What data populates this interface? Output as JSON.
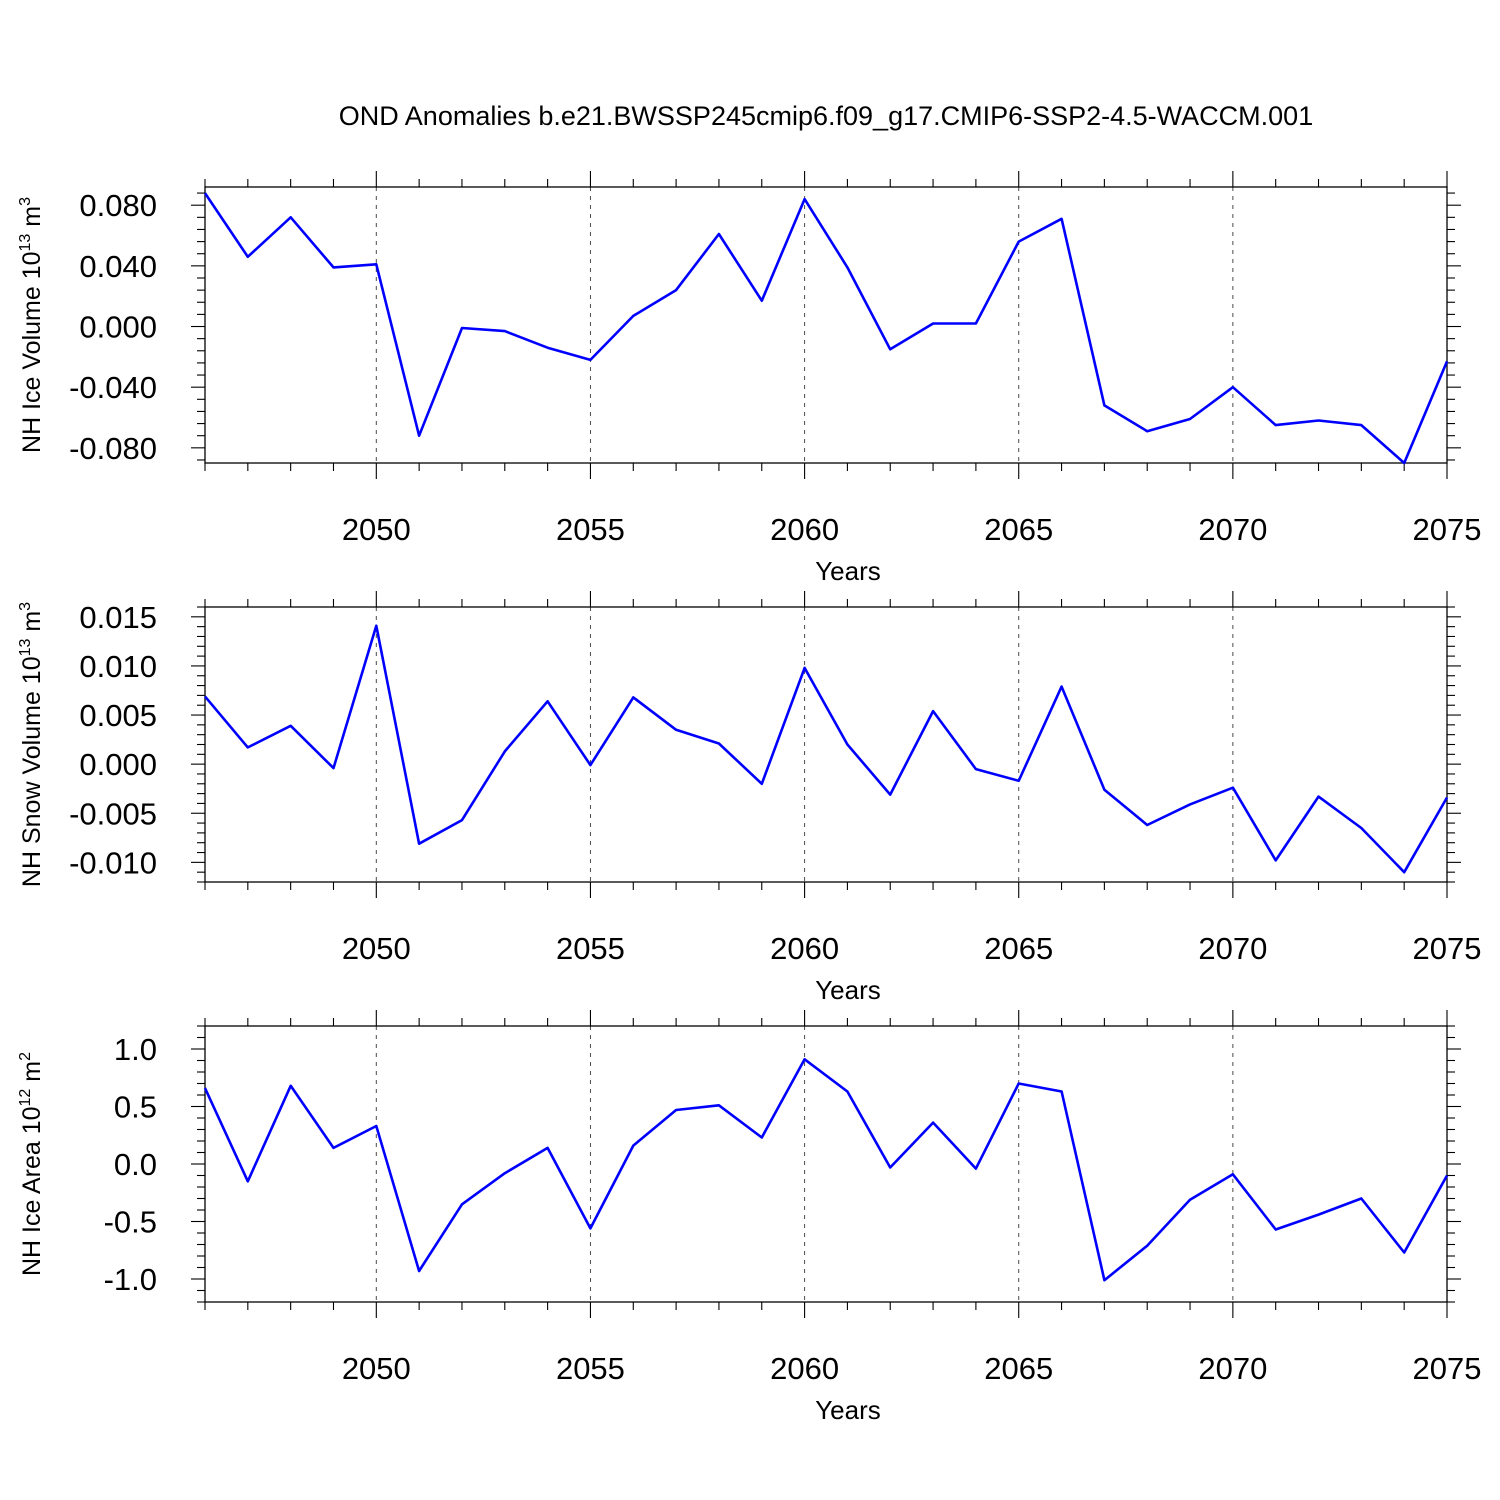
{
  "chart_data": [
    {
      "type": "line",
      "title": "OND Anomalies b.e21.BWSSP245cmip6.f09_g17.CMIP6-SSP2-4.5-WACCM.001",
      "xlabel": "Years",
      "ylabel": "NH Ice Volume 10",
      "ylabel_exponent": "13",
      "ylabel_unit": "m",
      "ylabel_unit_exponent": "3",
      "xlim": [
        2046,
        2075
      ],
      "ylim": [
        -0.09,
        0.092
      ],
      "xticks": [
        2050,
        2055,
        2060,
        2065,
        2070,
        2075
      ],
      "xtick_labels": [
        "2050",
        "2055",
        "2060",
        "2065",
        "2070",
        "2075"
      ],
      "yticks": [
        0.08,
        0.04,
        0.0,
        -0.04,
        -0.08
      ],
      "ytick_labels": [
        "0.080",
        "0.040",
        "0.000",
        "-0.040",
        "-0.080"
      ],
      "series": [
        {
          "name": "NH Ice Volume",
          "color": "#0000ff",
          "x": [
            2046,
            2047,
            2048,
            2049,
            2050,
            2051,
            2052,
            2053,
            2054,
            2055,
            2056,
            2057,
            2058,
            2059,
            2060,
            2061,
            2062,
            2063,
            2064,
            2065,
            2066,
            2067,
            2068,
            2069,
            2070,
            2071,
            2072,
            2073,
            2074,
            2075
          ],
          "values": [
            0.088,
            0.046,
            0.072,
            0.039,
            0.041,
            -0.072,
            -0.001,
            -0.003,
            -0.014,
            -0.022,
            0.007,
            0.024,
            0.061,
            0.017,
            0.084,
            0.039,
            -0.015,
            0.002,
            0.002,
            0.056,
            0.071,
            -0.052,
            -0.069,
            -0.061,
            -0.04,
            -0.065,
            -0.062,
            -0.065,
            -0.09,
            -0.023
          ]
        }
      ]
    },
    {
      "type": "line",
      "xlabel": "Years",
      "ylabel": "NH Snow Volume 10",
      "ylabel_exponent": "13",
      "ylabel_unit": "m",
      "ylabel_unit_exponent": "3",
      "xlim": [
        2046,
        2075
      ],
      "ylim": [
        -0.012,
        0.016
      ],
      "xticks": [
        2050,
        2055,
        2060,
        2065,
        2070,
        2075
      ],
      "xtick_labels": [
        "2050",
        "2055",
        "2060",
        "2065",
        "2070",
        "2075"
      ],
      "yticks": [
        0.015,
        0.01,
        0.005,
        0.0,
        -0.005,
        -0.01
      ],
      "ytick_labels": [
        "0.015",
        "0.010",
        "0.005",
        "0.000",
        "-0.005",
        "-0.010"
      ],
      "series": [
        {
          "name": "NH Snow Volume",
          "color": "#0000ff",
          "x": [
            2046,
            2047,
            2048,
            2049,
            2050,
            2051,
            2052,
            2053,
            2054,
            2055,
            2056,
            2057,
            2058,
            2059,
            2060,
            2061,
            2062,
            2063,
            2064,
            2065,
            2066,
            2067,
            2068,
            2069,
            2070,
            2071,
            2072,
            2073,
            2074,
            2075
          ],
          "values": [
            0.0069,
            0.0017,
            0.0039,
            -0.0004,
            0.0141,
            -0.0081,
            -0.0057,
            0.0013,
            0.0064,
            -0.0001,
            0.0068,
            0.0035,
            0.0021,
            -0.002,
            0.0098,
            0.002,
            -0.0031,
            0.0054,
            -0.0005,
            -0.0017,
            0.0079,
            -0.0026,
            -0.0062,
            -0.0041,
            -0.0024,
            -0.0098,
            -0.0033,
            -0.0065,
            -0.011,
            -0.0034
          ]
        }
      ]
    },
    {
      "type": "line",
      "xlabel": "Years",
      "ylabel": "NH Ice Area 10",
      "ylabel_exponent": "12",
      "ylabel_unit": "m",
      "ylabel_unit_exponent": "2",
      "xlim": [
        2046,
        2075
      ],
      "ylim": [
        -1.2,
        1.2
      ],
      "xticks": [
        2050,
        2055,
        2060,
        2065,
        2070,
        2075
      ],
      "xtick_labels": [
        "2050",
        "2055",
        "2060",
        "2065",
        "2070",
        "2075"
      ],
      "yticks": [
        1.0,
        0.5,
        0.0,
        -0.5,
        -1.0
      ],
      "ytick_labels": [
        "1.0",
        "0.5",
        "0.0",
        "-0.5",
        "-1.0"
      ],
      "series": [
        {
          "name": "NH Ice Area",
          "color": "#0000ff",
          "x": [
            2046,
            2047,
            2048,
            2049,
            2050,
            2051,
            2052,
            2053,
            2054,
            2055,
            2056,
            2057,
            2058,
            2059,
            2060,
            2061,
            2062,
            2063,
            2064,
            2065,
            2066,
            2067,
            2068,
            2069,
            2070,
            2071,
            2072,
            2073,
            2074,
            2075
          ],
          "values": [
            0.66,
            -0.15,
            0.68,
            0.14,
            0.33,
            -0.93,
            -0.35,
            -0.08,
            0.14,
            -0.56,
            0.16,
            0.47,
            0.51,
            0.23,
            0.91,
            0.63,
            -0.03,
            0.36,
            -0.04,
            0.7,
            0.63,
            -1.01,
            -0.71,
            -0.31,
            -0.09,
            -0.57,
            -0.44,
            -0.3,
            -0.77,
            -0.1
          ]
        }
      ]
    }
  ]
}
